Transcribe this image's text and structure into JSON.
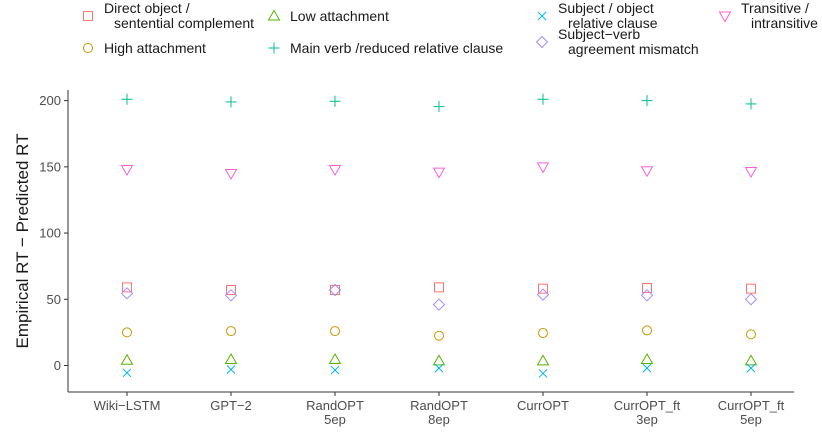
{
  "chart_data": {
    "type": "scatter",
    "title": "",
    "xlabel": "",
    "ylabel": "Empirical RT − Predicted RT",
    "ylim": [
      -20,
      208
    ],
    "yticks": [
      0,
      50,
      100,
      150,
      200
    ],
    "grid": false,
    "legend_position": "top",
    "categories": [
      [
        "Wiki−LSTM"
      ],
      [
        "GPT−2"
      ],
      [
        "RandOPT",
        "5ep"
      ],
      [
        "RandOPT",
        "8ep"
      ],
      [
        "CurrOPT"
      ],
      [
        "CurrOPT_ft",
        "3ep"
      ],
      [
        "CurrOPT_ft",
        "5ep"
      ]
    ],
    "series": [
      {
        "name": [
          "Direct object /",
          "sentential complement"
        ],
        "marker": "square",
        "color": "#F8766D",
        "values": [
          59,
          57,
          57,
          59,
          58,
          58.5,
          58
        ]
      },
      {
        "name": [
          "High attachment"
        ],
        "marker": "circle",
        "color": "#C49A00",
        "values": [
          25,
          26,
          26,
          22.5,
          24.5,
          26.5,
          23.5
        ]
      },
      {
        "name": [
          "Low attachment"
        ],
        "marker": "triangle-up",
        "color": "#53B400",
        "values": [
          4,
          4.5,
          4.5,
          3.5,
          3.5,
          4.5,
          3.5
        ]
      },
      {
        "name": [
          "Main verb /reduced relative clause"
        ],
        "marker": "plus",
        "color": "#00C094",
        "values": [
          201,
          199,
          199.5,
          195.5,
          201,
          200,
          197.5
        ]
      },
      {
        "name": [
          "Subject / object",
          "relative clause"
        ],
        "marker": "cross",
        "color": "#00B6EB",
        "values": [
          -5.5,
          -3,
          -3.5,
          -2,
          -6,
          -2,
          -2
        ]
      },
      {
        "name": [
          "Subject−verb",
          " agreement mismatch"
        ],
        "marker": "diamond",
        "color": "#A58AFF",
        "values": [
          54.5,
          53,
          57,
          46,
          53.5,
          53,
          50
        ]
      },
      {
        "name": [
          "Transitive /",
          "intransitive"
        ],
        "marker": "triangle-down",
        "color": "#FB61D7",
        "values": [
          148,
          145,
          148,
          146,
          150,
          147,
          146.5
        ]
      }
    ]
  }
}
